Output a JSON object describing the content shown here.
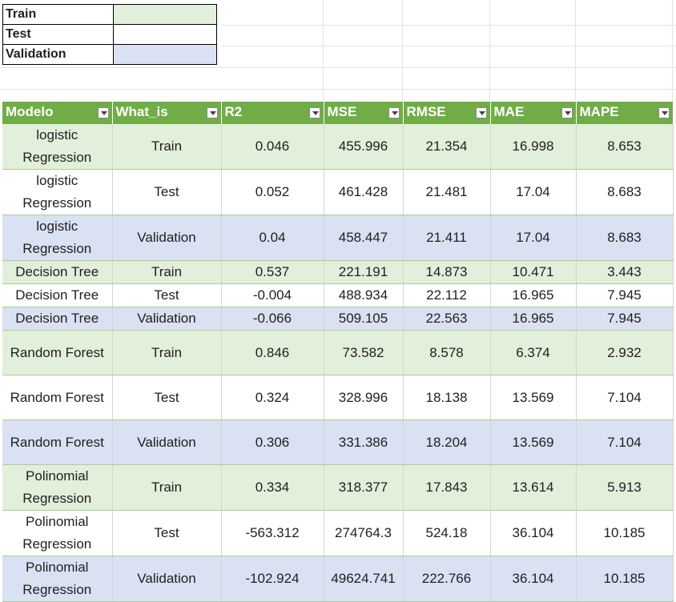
{
  "colors": {
    "train": "#e2efda",
    "test": "#ffffff",
    "validation": "#d9e1f2",
    "header": "#70ad47"
  },
  "legend": [
    {
      "label": "Train",
      "swatch": "train"
    },
    {
      "label": "Test",
      "swatch": "test"
    },
    {
      "label": "Validation",
      "swatch": "validation"
    }
  ],
  "table": {
    "headers": [
      "Modelo",
      "What_is",
      "R2",
      "MSE",
      "RMSE",
      "MAE",
      "MAPE"
    ],
    "rows": [
      {
        "modelo": "logistic Regression",
        "what_is": "Train",
        "r2": "0.046",
        "mse": "455.996",
        "rmse": "21.354",
        "mae": "16.998",
        "mape": "8.653"
      },
      {
        "modelo": "logistic Regression",
        "what_is": "Test",
        "r2": "0.052",
        "mse": "461.428",
        "rmse": "21.481",
        "mae": "17.04",
        "mape": "8.683"
      },
      {
        "modelo": "logistic Regression",
        "what_is": "Validation",
        "r2": "0.04",
        "mse": "458.447",
        "rmse": "21.411",
        "mae": "17.04",
        "mape": "8.683"
      },
      {
        "modelo": "Decision Tree",
        "what_is": "Train",
        "r2": "0.537",
        "mse": "221.191",
        "rmse": "14.873",
        "mae": "10.471",
        "mape": "3.443"
      },
      {
        "modelo": "Decision Tree",
        "what_is": "Test",
        "r2": "-0.004",
        "mse": "488.934",
        "rmse": "22.112",
        "mae": "16.965",
        "mape": "7.945"
      },
      {
        "modelo": "Decision Tree",
        "what_is": "Validation",
        "r2": "-0.066",
        "mse": "509.105",
        "rmse": "22.563",
        "mae": "16.965",
        "mape": "7.945"
      },
      {
        "modelo": "Random Forest",
        "what_is": "Train",
        "r2": "0.846",
        "mse": "73.582",
        "rmse": "8.578",
        "mae": "6.374",
        "mape": "2.932"
      },
      {
        "modelo": "Random Forest",
        "what_is": "Test",
        "r2": "0.324",
        "mse": "328.996",
        "rmse": "18.138",
        "mae": "13.569",
        "mape": "7.104"
      },
      {
        "modelo": "Random Forest",
        "what_is": "Validation",
        "r2": "0.306",
        "mse": "331.386",
        "rmse": "18.204",
        "mae": "13.569",
        "mape": "7.104"
      },
      {
        "modelo": "Polinomial Regression",
        "what_is": "Train",
        "r2": "0.334",
        "mse": "318.377",
        "rmse": "17.843",
        "mae": "13.614",
        "mape": "5.913"
      },
      {
        "modelo": "Polinomial Regression",
        "what_is": "Test",
        "r2": "-563.312",
        "mse": "274764.3",
        "rmse": "524.18",
        "mae": "36.104",
        "mape": "10.185"
      },
      {
        "modelo": "Polinomial Regression",
        "what_is": "Validation",
        "r2": "-102.924",
        "mse": "49624.741",
        "rmse": "222.766",
        "mae": "36.104",
        "mape": "10.185"
      }
    ]
  }
}
